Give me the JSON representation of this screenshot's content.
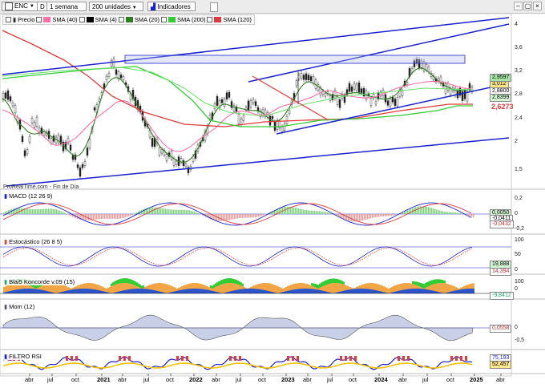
{
  "toolbar": {
    "symbol": "ENC",
    "d_button": "D",
    "period": "1 semana",
    "units": "200 unidades",
    "indicators": "Indicadores",
    "legend": [
      {
        "label": "Precio",
        "color": "#2a2a2a"
      },
      {
        "label": "SMA (40)",
        "color": "#ff6fa8"
      },
      {
        "label": "SMA (4)",
        "color": "#000000"
      },
      {
        "label": "SMA (20)",
        "color": "#2e7d1e"
      },
      {
        "label": "SMA (200)",
        "color": "#33cc33"
      },
      {
        "label": "SMA (120)",
        "color": "#e03a3a"
      }
    ]
  },
  "price_panel": {
    "watermark": "ProRealTime.com - Fin de Día",
    "scale": [
      "4",
      "3,6",
      "3,2",
      "2,8",
      "2,4",
      "2",
      "1,5"
    ],
    "badges": [
      {
        "text": "3,012",
        "bg": "#ffe68a",
        "color": "#000"
      },
      {
        "text": "2,9597",
        "bg": "#a8e6a8",
        "color": "#000"
      },
      {
        "text": "2,8800",
        "bg": "#ffffff",
        "color": "#000"
      },
      {
        "text": "2,8399",
        "bg": "#d2f5d2",
        "color": "#000"
      },
      {
        "text": "2,6273",
        "bg": "#ffffff",
        "color": "#e03a3a"
      }
    ]
  },
  "macd_panel": {
    "label": "MACD (12 26 9)",
    "scale": [
      "0,2",
      "0",
      "-0,2"
    ],
    "badges": [
      "0,0050",
      "-0,0411",
      "-0,0432"
    ]
  },
  "stoch_panel": {
    "label": "Estocástico (26 8 5)",
    "scale": [
      "100",
      "50",
      "0"
    ],
    "badges": [
      "19,888",
      "14,394"
    ]
  },
  "blai_panel": {
    "label": "Blai5 Koncorde v.09 (15)",
    "scale": [
      "100",
      "0"
    ],
    "badges": [
      "-9,8412"
    ]
  },
  "mom_panel": {
    "label": "Mom (12)",
    "scale": [
      "0",
      "-0,5"
    ],
    "badges": [
      "0,0558"
    ]
  },
  "filtro_panel": {
    "label": "FILTRO RSI",
    "badges": [
      "75,193",
      "52,457"
    ]
  },
  "x_axis": [
    "abr",
    "jul",
    "oct",
    "2021",
    "abr",
    "jul",
    "oct",
    "2022",
    "abr",
    "jul",
    "oct",
    "2023",
    "abr",
    "jul",
    "oct",
    "2024",
    "abr",
    "jul",
    "oct",
    "2025",
    "abr"
  ],
  "colors": {
    "price": "#2a2a2a",
    "sma40": "#ff6fa8",
    "sma20": "#2e7d1e",
    "sma200": "#33cc33",
    "sma120": "#e03a3a",
    "trend": "#1a22cc"
  }
}
